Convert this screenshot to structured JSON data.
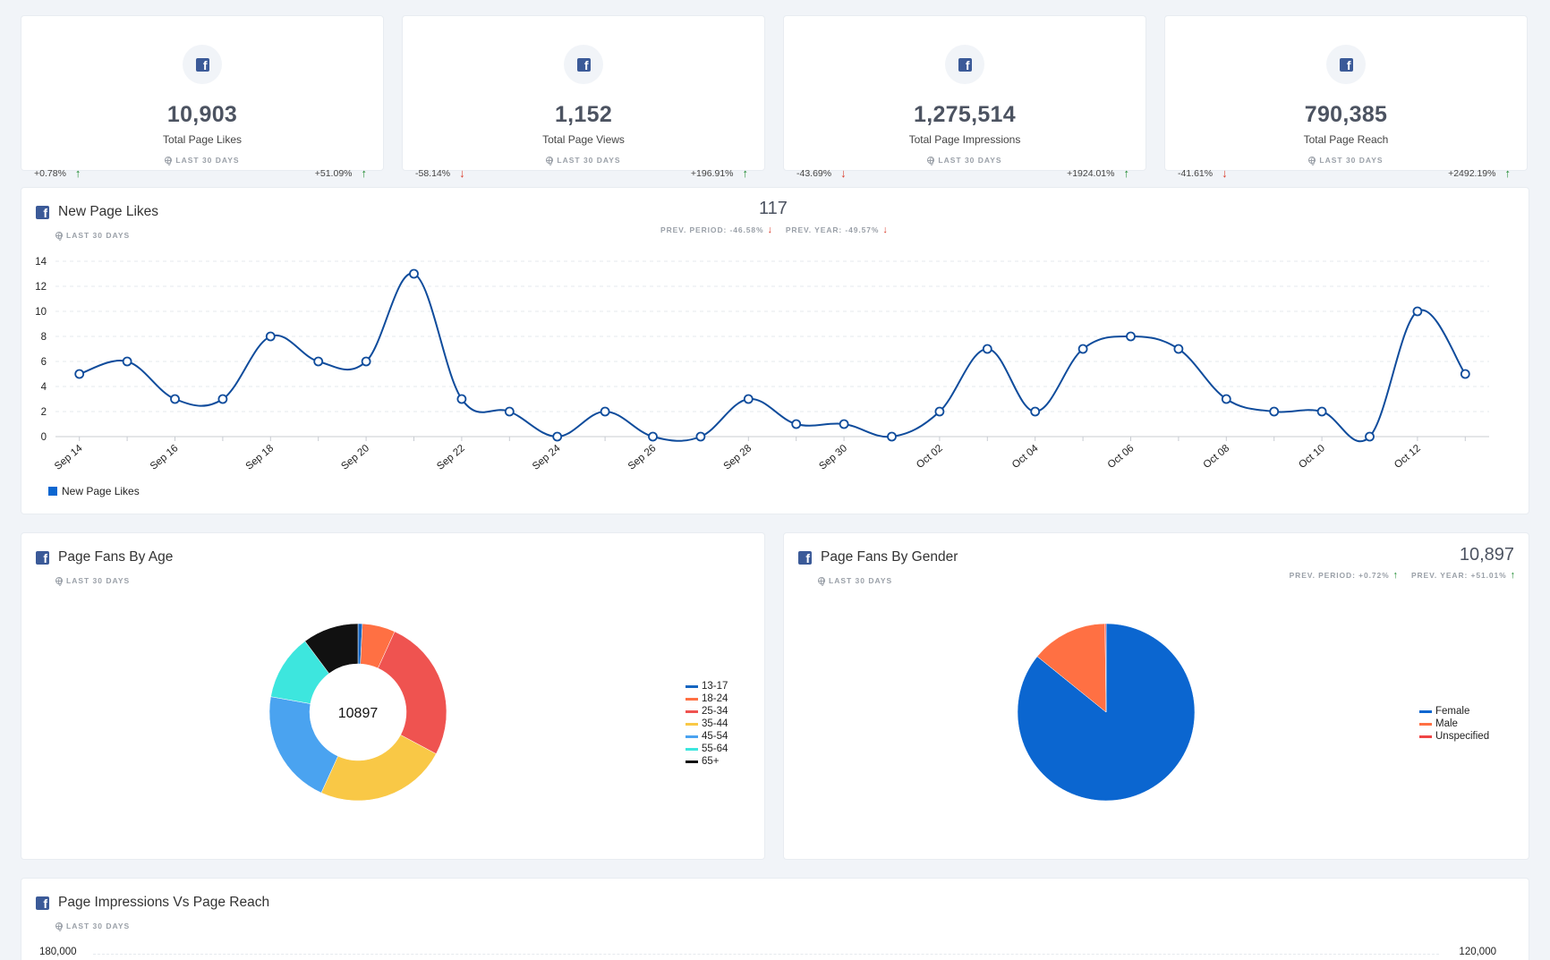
{
  "colors": {
    "facebook": "#3b5a98",
    "line": "#0f4c9c",
    "up": "#1d8a2f",
    "down": "#d93a2a"
  },
  "kpis": [
    {
      "value": "10,903",
      "label": "Total Page Likes",
      "range": "LAST 30 DAYS",
      "left_change": "+0.78%",
      "left_dir": "up",
      "right_change": "+51.09%",
      "right_dir": "up"
    },
    {
      "value": "1,152",
      "label": "Total Page Views",
      "range": "LAST 30 DAYS",
      "left_change": "-58.14%",
      "left_dir": "down",
      "right_change": "+196.91%",
      "right_dir": "up"
    },
    {
      "value": "1,275,514",
      "label": "Total Page Impressions",
      "range": "LAST 30 DAYS",
      "left_change": "-43.69%",
      "left_dir": "down",
      "right_change": "+1924.01%",
      "right_dir": "up"
    },
    {
      "value": "790,385",
      "label": "Total Page Reach",
      "range": "LAST 30 DAYS",
      "left_change": "-41.61%",
      "left_dir": "down",
      "right_change": "+2492.19%",
      "right_dir": "up"
    }
  ],
  "likes_card": {
    "title": "New Page Likes",
    "range": "LAST 30 DAYS",
    "total": "117",
    "prev_period": "PREV. PERIOD: -46.58%",
    "prev_year": "PREV. YEAR: -49.57%"
  },
  "age_card": {
    "title": "Page Fans By Age",
    "range": "LAST 30 DAYS"
  },
  "gender_card": {
    "title": "Page Fans By Gender",
    "range": "LAST 30 DAYS",
    "total": "10,897",
    "prev_period": "PREV. PERIOD: +0.72%",
    "prev_year": "PREV. YEAR: +51.01%"
  },
  "impressions_card": {
    "title": "Page Impressions Vs Page Reach",
    "range": "LAST 30 DAYS",
    "y_left_top": "180,000",
    "y_right_top": "120,000"
  },
  "chart_data": [
    {
      "type": "line",
      "series": [
        {
          "name": "New Page Likes",
          "color": "#0f4c9c",
          "values": [
            5,
            6,
            3,
            3,
            8,
            6,
            6,
            13,
            3,
            2,
            0,
            2,
            0,
            0,
            3,
            1,
            1,
            0,
            2,
            7,
            2,
            7,
            8,
            7,
            3,
            2,
            2,
            0,
            10,
            5
          ]
        }
      ],
      "x": [
        "Sep 14",
        "Sep 15",
        "Sep 16",
        "Sep 17",
        "Sep 18",
        "Sep 19",
        "Sep 20",
        "Sep 21",
        "Sep 22",
        "Sep 23",
        "Sep 24",
        "Sep 25",
        "Sep 26",
        "Sep 27",
        "Sep 28",
        "Sep 29",
        "Sep 30",
        "Oct 01",
        "Oct 02",
        "Oct 03",
        "Oct 04",
        "Oct 05",
        "Oct 06",
        "Oct 07",
        "Oct 08",
        "Oct 09",
        "Oct 10",
        "Oct 11",
        "Oct 12",
        "Oct 13"
      ],
      "xtick_labels": [
        "Sep 14",
        "Sep 16",
        "Sep 18",
        "Sep 20",
        "Sep 22",
        "Sep 24",
        "Sep 26",
        "Sep 28",
        "Sep 30",
        "Oct 02",
        "Oct 04",
        "Oct 06",
        "Oct 08",
        "Oct 10",
        "Oct 12"
      ],
      "yticks": [
        0,
        2,
        4,
        6,
        8,
        10,
        12,
        14
      ],
      "ylim": [
        0,
        14
      ],
      "grid": true,
      "legend": "bottom-left"
    },
    {
      "type": "pie",
      "variant": "donut",
      "center_label": "10897",
      "labels": [
        "13-17",
        "18-24",
        "25-34",
        "35-44",
        "45-54",
        "55-64",
        "65+"
      ],
      "values": [
        0.8,
        6,
        26,
        24,
        21,
        12,
        10.2
      ],
      "colors": [
        "#1565c0",
        "#ff7043",
        "#ef5350",
        "#f9c846",
        "#4aa3f0",
        "#3de6de",
        "#111111"
      ],
      "legend": "right"
    },
    {
      "type": "pie",
      "labels": [
        "Female",
        "Male",
        "Unspecified"
      ],
      "values": [
        86,
        14,
        0.2
      ],
      "colors": [
        "#0b66d0",
        "#ff7043",
        "#ef4444"
      ],
      "legend": "right"
    }
  ]
}
